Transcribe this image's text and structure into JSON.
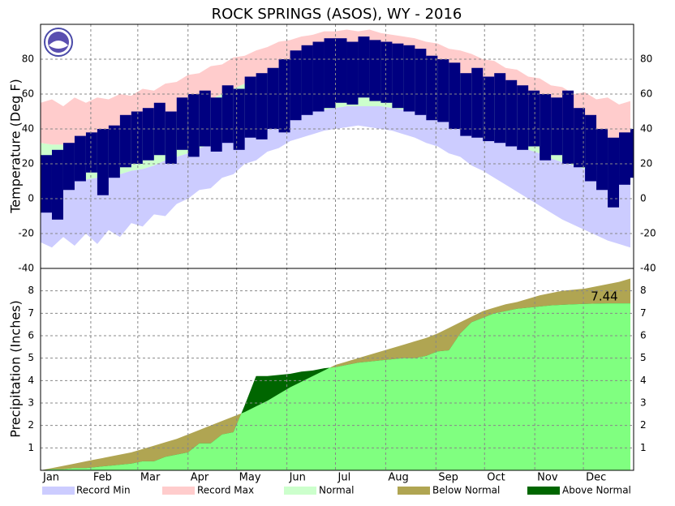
{
  "chart_data": [
    {
      "type": "temperature-range",
      "title": "ROCK SPRINGS (ASOS), WY - 2016",
      "ylabel": "Temperature (Deg F)",
      "ylim": [
        -40,
        100
      ],
      "yticks": [
        -40,
        -20,
        0,
        20,
        40,
        60,
        80
      ],
      "xlim": [
        1,
        367
      ],
      "grid": true,
      "x": [
        1,
        8,
        15,
        22,
        29,
        36,
        43,
        50,
        57,
        64,
        71,
        78,
        85,
        92,
        99,
        106,
        113,
        120,
        127,
        134,
        141,
        148,
        155,
        162,
        169,
        176,
        183,
        190,
        197,
        204,
        211,
        218,
        225,
        232,
        239,
        246,
        253,
        260,
        267,
        274,
        281,
        288,
        295,
        302,
        309,
        316,
        323,
        330,
        337,
        344,
        351,
        358,
        365
      ],
      "series": [
        {
          "name": "Record Min",
          "color": "#ccccff",
          "values": [
            -25,
            -28,
            -22,
            -27,
            -20,
            -26,
            -18,
            -22,
            -14,
            -16,
            -9,
            -10,
            -3,
            0,
            5,
            6,
            12,
            14,
            20,
            22,
            27,
            29,
            33,
            35,
            37,
            39,
            40,
            41,
            42,
            41,
            40,
            39,
            37,
            35,
            32,
            30,
            26,
            24,
            19,
            16,
            12,
            8,
            4,
            0,
            -4,
            -8,
            -12,
            -15,
            -18,
            -21,
            -24,
            -26,
            -28
          ]
        },
        {
          "name": "Record Max",
          "color": "#ffcccc",
          "values": [
            55,
            57,
            53,
            58,
            55,
            58,
            57,
            60,
            59,
            63,
            62,
            66,
            67,
            71,
            72,
            76,
            77,
            81,
            82,
            85,
            87,
            90,
            91,
            93,
            94,
            96,
            96,
            97,
            96,
            97,
            95,
            94,
            93,
            92,
            90,
            89,
            86,
            85,
            83,
            80,
            79,
            75,
            74,
            70,
            69,
            65,
            64,
            60,
            61,
            57,
            58,
            54,
            56
          ]
        },
        {
          "name": "Normal",
          "color": "#ccffcc",
          "low": [
            12,
            11,
            11,
            11,
            11,
            12,
            13,
            14,
            16,
            17,
            19,
            22,
            24,
            26,
            29,
            31,
            34,
            36,
            39,
            41,
            43,
            45,
            47,
            49,
            50,
            51,
            52,
            53,
            53,
            53,
            53,
            52,
            51,
            50,
            48,
            47,
            45,
            43,
            41,
            38,
            36,
            33,
            31,
            28,
            26,
            23,
            21,
            19,
            17,
            16,
            14,
            13,
            12
          ],
          "high": [
            32,
            31,
            31,
            31,
            32,
            32,
            34,
            35,
            37,
            39,
            42,
            45,
            47,
            50,
            54,
            57,
            60,
            63,
            66,
            69,
            72,
            75,
            77,
            80,
            81,
            83,
            84,
            85,
            85,
            85,
            85,
            84,
            82,
            81,
            79,
            77,
            75,
            72,
            69,
            66,
            63,
            60,
            56,
            53,
            50,
            47,
            44,
            41,
            39,
            37,
            35,
            33,
            32
          ]
        }
      ],
      "observed": {
        "color": "#000080",
        "low": [
          -8,
          -12,
          5,
          10,
          15,
          2,
          12,
          18,
          20,
          22,
          25,
          20,
          28,
          24,
          30,
          27,
          32,
          28,
          35,
          34,
          40,
          38,
          45,
          48,
          50,
          52,
          55,
          54,
          58,
          56,
          55,
          52,
          50,
          48,
          45,
          44,
          40,
          36,
          35,
          33,
          32,
          30,
          28,
          30,
          22,
          25,
          20,
          18,
          10,
          5,
          -5,
          8,
          12
        ],
        "high": [
          25,
          28,
          32,
          36,
          38,
          40,
          42,
          48,
          50,
          52,
          55,
          50,
          58,
          60,
          62,
          58,
          65,
          63,
          70,
          72,
          75,
          80,
          85,
          88,
          90,
          92,
          92,
          90,
          93,
          91,
          90,
          89,
          88,
          86,
          82,
          80,
          78,
          72,
          75,
          70,
          72,
          68,
          65,
          62,
          60,
          58,
          62,
          52,
          48,
          40,
          35,
          38,
          40
        ]
      }
    },
    {
      "type": "cumulative-precip",
      "ylabel": "Precipitation (Inches)",
      "ylim": [
        0,
        9
      ],
      "yticks": [
        1,
        2,
        3,
        4,
        5,
        6,
        7,
        8
      ],
      "xlim": [
        1,
        367
      ],
      "xticks": [
        {
          "value": 1,
          "label": "Jan"
        },
        {
          "value": 32,
          "label": "Feb"
        },
        {
          "value": 61,
          "label": "Mar"
        },
        {
          "value": 92,
          "label": "Apr"
        },
        {
          "value": 122,
          "label": "May"
        },
        {
          "value": 153,
          "label": "Jun"
        },
        {
          "value": 183,
          "label": "Jul"
        },
        {
          "value": 214,
          "label": "Aug"
        },
        {
          "value": 245,
          "label": "Sep"
        },
        {
          "value": 275,
          "label": "Oct"
        },
        {
          "value": 306,
          "label": "Nov"
        },
        {
          "value": 336,
          "label": "Dec"
        }
      ],
      "grid": true,
      "x": [
        1,
        8,
        15,
        22,
        29,
        36,
        43,
        50,
        57,
        64,
        71,
        78,
        85,
        92,
        99,
        106,
        113,
        120,
        127,
        134,
        141,
        148,
        155,
        162,
        169,
        176,
        183,
        190,
        197,
        204,
        211,
        218,
        225,
        232,
        239,
        246,
        253,
        260,
        267,
        274,
        281,
        288,
        295,
        302,
        309,
        316,
        323,
        330,
        337,
        344,
        351,
        358,
        365
      ],
      "normal_values": [
        0,
        0.1,
        0.2,
        0.3,
        0.4,
        0.5,
        0.6,
        0.7,
        0.8,
        0.95,
        1.1,
        1.25,
        1.4,
        1.6,
        1.8,
        2.0,
        2.2,
        2.4,
        2.6,
        2.85,
        3.1,
        3.4,
        3.7,
        3.95,
        4.2,
        4.45,
        4.7,
        4.85,
        5.0,
        5.15,
        5.3,
        5.45,
        5.6,
        5.75,
        5.9,
        6.1,
        6.35,
        6.6,
        6.85,
        7.1,
        7.25,
        7.4,
        7.5,
        7.65,
        7.8,
        7.9,
        8.0,
        8.05,
        8.1,
        8.2,
        8.3,
        8.4,
        8.55
      ],
      "observed_values": [
        0,
        0.05,
        0.05,
        0.1,
        0.1,
        0.15,
        0.2,
        0.25,
        0.3,
        0.4,
        0.4,
        0.6,
        0.7,
        0.8,
        1.2,
        1.2,
        1.6,
        1.7,
        2.9,
        4.2,
        4.2,
        4.25,
        4.3,
        4.4,
        4.45,
        4.55,
        4.6,
        4.7,
        4.8,
        4.85,
        4.9,
        4.95,
        5.0,
        5.0,
        5.1,
        5.3,
        5.35,
        6.1,
        6.6,
        6.8,
        7.0,
        7.1,
        7.2,
        7.25,
        7.3,
        7.35,
        7.38,
        7.4,
        7.42,
        7.43,
        7.44,
        7.44,
        7.44
      ],
      "observed_color": "#80ff80",
      "annotation": "7.44",
      "series": [
        {
          "name": "Below Normal",
          "color": "#b0a552"
        },
        {
          "name": "Above Normal",
          "color": "#006600"
        }
      ]
    }
  ]
}
